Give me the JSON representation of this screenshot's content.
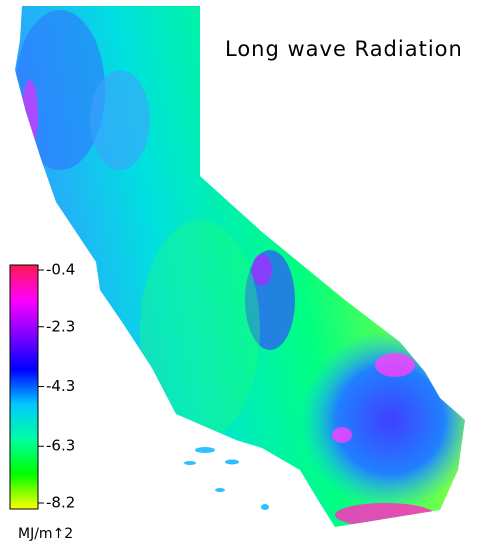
{
  "map": {
    "title": "Long wave Radiation",
    "colorbar": {
      "ticks": [
        -0.4,
        -2.3,
        -4.3,
        -6.3,
        -8.2
      ],
      "unit": "MJ/m↑2",
      "colors": [
        "#ff1a50",
        "#ff00ff",
        "#8000ff",
        "#0000ff",
        "#00c8ff",
        "#00ffa0",
        "#00ff00",
        "#ffff00"
      ]
    }
  }
}
